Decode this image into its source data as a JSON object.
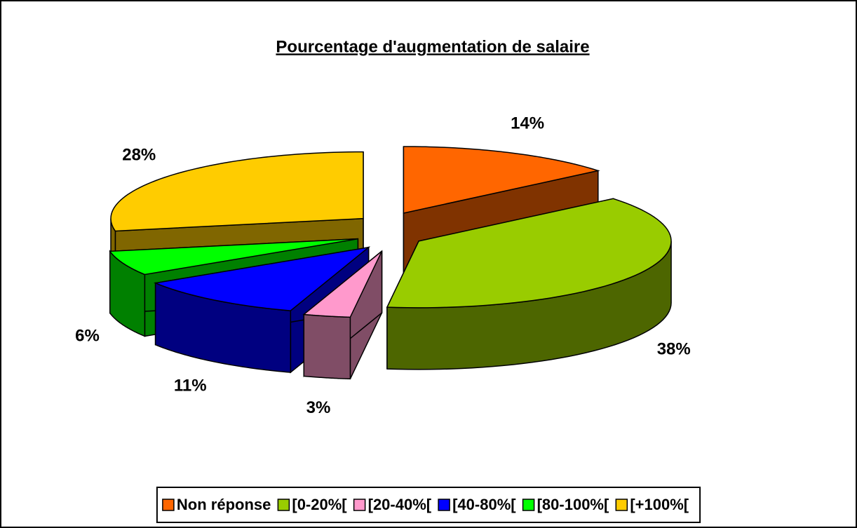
{
  "chart_data": {
    "type": "pie3d",
    "title": "Pourcentage d'augmentation de salaire",
    "categories": [
      "Non réponse",
      "[0-20%[",
      "[20-40%[",
      "[40-80%[",
      "[80-100%[",
      "[+100%["
    ],
    "values": [
      14,
      38,
      3,
      11,
      6,
      28
    ],
    "value_labels": [
      "14%",
      "38%",
      "3%",
      "11%",
      "6%",
      "28%"
    ],
    "colors": [
      "#ff6600",
      "#99cc00",
      "#ff99cc",
      "#0000ff",
      "#00ff00",
      "#ffcc00"
    ],
    "legend": "bottom"
  }
}
